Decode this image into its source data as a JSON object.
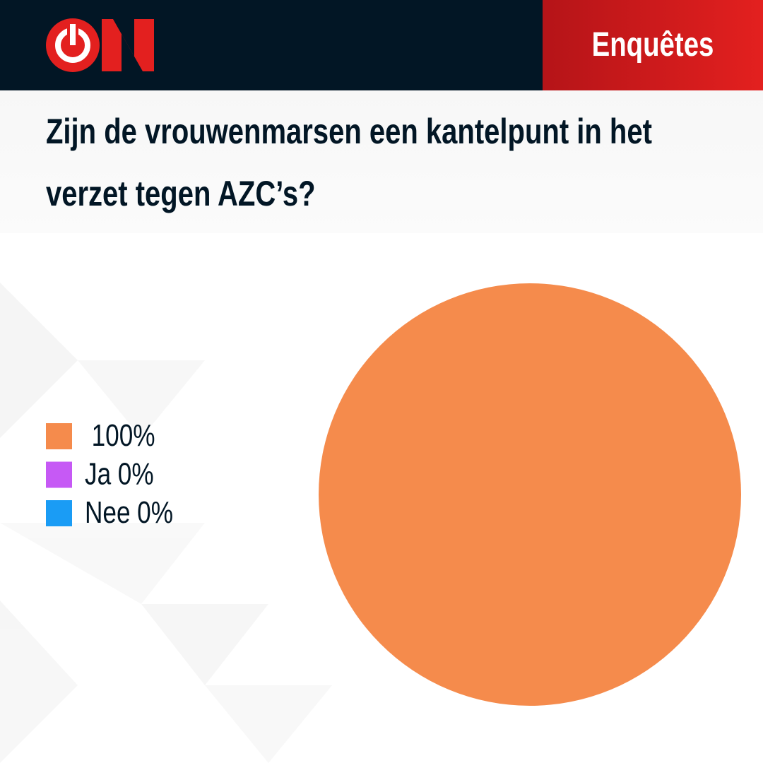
{
  "header": {
    "section": "Enquêtes"
  },
  "chart_data": {
    "type": "pie",
    "title": "Zijn de vrouwenmarsen een kantelpunt in het verzet tegen AZC’s?",
    "categories": [
      null,
      "Ja",
      "Nee"
    ],
    "values": [
      100,
      0,
      0
    ],
    "value_labels": [
      "100%",
      "0%",
      "0%"
    ],
    "colors": [
      "#f58b4c",
      "#c659f5",
      "#1a9cf5"
    ],
    "legend": "left"
  }
}
